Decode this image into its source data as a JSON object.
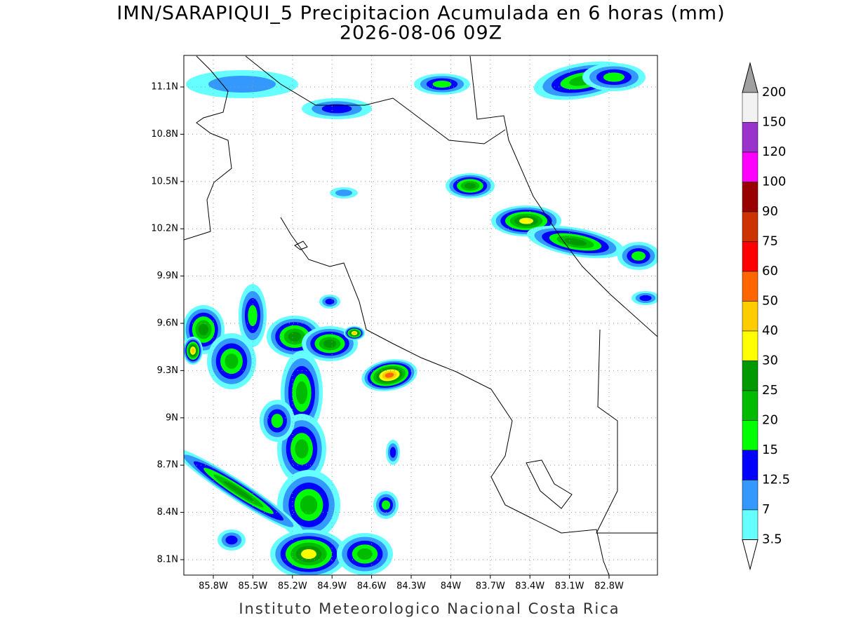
{
  "title": "IMN/SARAPIQUI_5 Precipitacion Acumulada en 6 horas (mm)",
  "subtitle": "2026-08-06 09Z",
  "lat_labels": [
    "11.1N",
    "10.8N",
    "10.5N",
    "10.2N",
    "9.9N",
    "9.6N",
    "9.3N",
    "9N",
    "8.7N",
    "8.4N",
    "8.1N"
  ],
  "lon_labels": [
    "85.8W",
    "85.5W",
    "85.2W",
    "84.9W",
    "84.6W",
    "84.3W",
    "84W",
    "83.7W",
    "83.4W",
    "83.1W",
    "82.8W"
  ],
  "colorbar": {
    "labels": [
      "200",
      "150",
      "120",
      "100",
      "90",
      "75",
      "60",
      "50",
      "40",
      "30",
      "25",
      "20",
      "15",
      "12.5",
      "7",
      "3.5"
    ],
    "colors": [
      "#f2f2f2",
      "#9933cc",
      "#ff00ff",
      "#990000",
      "#cc3300",
      "#ff0000",
      "#ff6600",
      "#ffcc00",
      "#ffff00",
      "#009900",
      "#00bb00",
      "#00ff00",
      "#0000ff",
      "#3399ff",
      "#66ffff"
    ],
    "over_color": "#a0a0a0",
    "under_color": "#ffffff"
  },
  "footer": "Instituto Meteorologico Nacional Costa Rica"
}
